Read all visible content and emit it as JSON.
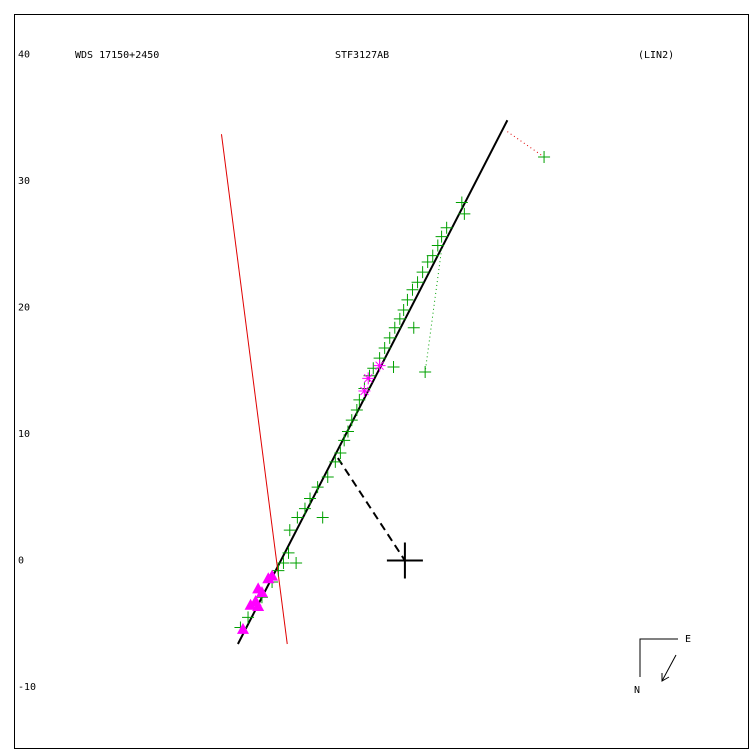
{
  "chart_data": {
    "type": "scatter",
    "title": "STF3127AB",
    "annotations": [
      "WDS 17150+2450",
      "(LIN2)"
    ],
    "compass": {
      "east": "E",
      "north": "N"
    },
    "xlim": [
      -30.9,
      27.2
    ],
    "ylim": [
      -14.9,
      43.2
    ],
    "yticks": [
      40,
      30,
      20,
      10,
      0,
      -10
    ],
    "series": [
      {
        "color": "#00a000",
        "marker": "plus",
        "x": [
          -13.0,
          -12.4,
          -11.3,
          -10.5,
          -10.0,
          -9.6,
          -9.2,
          -8.6,
          -9.1,
          -8.5,
          -7.9,
          -7.5,
          -6.9,
          -6.5,
          -6.1,
          -5.5,
          -5.1,
          -4.8,
          -4.5,
          -4.2,
          -3.8,
          -3.6,
          -3.2,
          -2.8,
          -2.5,
          -2.0,
          -1.6,
          -1.2,
          -0.9,
          -0.8,
          -0.4,
          -0.1,
          0.2,
          0.7,
          0.6,
          1.0,
          1.4,
          1.8,
          2.2,
          2.6,
          2.9,
          3.3,
          4.5,
          4.7,
          1.6,
          11.0
        ],
        "values": [
          -5.3,
          -4.5,
          -2.9,
          -1.7,
          -0.8,
          -0.2,
          0.6,
          -0.2,
          2.4,
          3.4,
          4.1,
          4.9,
          5.8,
          3.4,
          6.6,
          7.8,
          8.5,
          9.5,
          10.2,
          11.1,
          11.9,
          12.7,
          13.6,
          14.6,
          15.2,
          16.0,
          16.8,
          17.6,
          15.3,
          18.4,
          19.1,
          19.8,
          20.6,
          18.4,
          21.4,
          22.0,
          22.8,
          23.6,
          24.1,
          24.9,
          25.6,
          26.3,
          28.3,
          27.4,
          14.9,
          31.9
        ]
      },
      {
        "color": "#ff00ff",
        "marker": "triangle",
        "x": [
          -12.8,
          -12.2,
          -11.8,
          -11.6,
          -11.3,
          -10.8,
          -10.5,
          -11.6
        ],
        "values": [
          -5.4,
          -3.5,
          -3.2,
          -3.6,
          -2.5,
          -1.4,
          -1.2,
          -2.2
        ]
      },
      {
        "color": "#ff00ff",
        "marker": "asterisk",
        "x": [
          -2.9,
          -3.2,
          -2.0
        ],
        "values": [
          14.4,
          13.4,
          15.4
        ]
      },
      {
        "color": "#000000",
        "marker": "bigplus",
        "x": [
          0
        ],
        "values": [
          0
        ]
      }
    ],
    "lines": [
      {
        "color": "#000000",
        "style": "solid",
        "width": 2,
        "x": [
          -13.2,
          8.1
        ],
        "values": [
          -6.6,
          34.8
        ]
      },
      {
        "color": "#e00000",
        "style": "solid",
        "width": 1,
        "x": [
          -14.5,
          -9.3
        ],
        "values": [
          33.7,
          -6.6
        ]
      },
      {
        "color": "#000000",
        "style": "dashed",
        "width": 2,
        "x": [
          -5.3,
          0
        ],
        "values": [
          8.1,
          0
        ]
      },
      {
        "color": "#e00000",
        "style": "dotted",
        "width": 1,
        "x": [
          8.1,
          11.0
        ],
        "values": [
          33.9,
          31.9
        ]
      },
      {
        "color": "#00a000",
        "style": "dotted",
        "width": 1,
        "x": [
          2.9,
          1.6
        ],
        "values": [
          24.6,
          14.9
        ]
      }
    ]
  }
}
